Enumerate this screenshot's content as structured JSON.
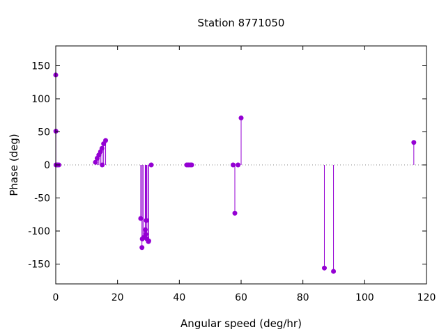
{
  "chart_data": {
    "type": "scatter",
    "style": "impulses-with-points",
    "title": "Station 8771050",
    "xlabel": "Angular speed (deg/hr)",
    "ylabel": "Phase (deg)",
    "xlim": [
      0,
      120
    ],
    "ylim": [
      -180,
      180
    ],
    "xticks": [
      0,
      20,
      40,
      60,
      80,
      100,
      120
    ],
    "yticks": [
      -150,
      -100,
      -50,
      0,
      50,
      100,
      150
    ],
    "zero_line": true,
    "grid": false,
    "color": "#9400d3",
    "points": [
      {
        "x": 0.0,
        "y": 136
      },
      {
        "x": 0.04,
        "y": 51
      },
      {
        "x": 0.08,
        "y": 0
      },
      {
        "x": 0.5,
        "y": 0
      },
      {
        "x": 1.0,
        "y": 0
      },
      {
        "x": 12.85,
        "y": 4
      },
      {
        "x": 13.4,
        "y": 10
      },
      {
        "x": 13.94,
        "y": 15
      },
      {
        "x": 14.5,
        "y": 20
      },
      {
        "x": 14.96,
        "y": 25
      },
      {
        "x": 15.04,
        "y": 0
      },
      {
        "x": 15.5,
        "y": 32
      },
      {
        "x": 16.14,
        "y": 37
      },
      {
        "x": 27.5,
        "y": -81
      },
      {
        "x": 27.9,
        "y": -125
      },
      {
        "x": 28.0,
        "y": -112
      },
      {
        "x": 28.4,
        "y": -110
      },
      {
        "x": 28.99,
        "y": -98
      },
      {
        "x": 29.1,
        "y": -105
      },
      {
        "x": 29.3,
        "y": -84
      },
      {
        "x": 29.5,
        "y": -112
      },
      {
        "x": 30.0,
        "y": -116
      },
      {
        "x": 30.1,
        "y": -115
      },
      {
        "x": 30.9,
        "y": 0
      },
      {
        "x": 42.4,
        "y": 0
      },
      {
        "x": 42.9,
        "y": 0
      },
      {
        "x": 43.5,
        "y": 0
      },
      {
        "x": 44.0,
        "y": 0
      },
      {
        "x": 57.4,
        "y": 0
      },
      {
        "x": 57.97,
        "y": -73
      },
      {
        "x": 59.0,
        "y": 0
      },
      {
        "x": 60.0,
        "y": 71
      },
      {
        "x": 86.95,
        "y": -156
      },
      {
        "x": 89.9,
        "y": -161
      },
      {
        "x": 115.9,
        "y": 34
      }
    ]
  }
}
